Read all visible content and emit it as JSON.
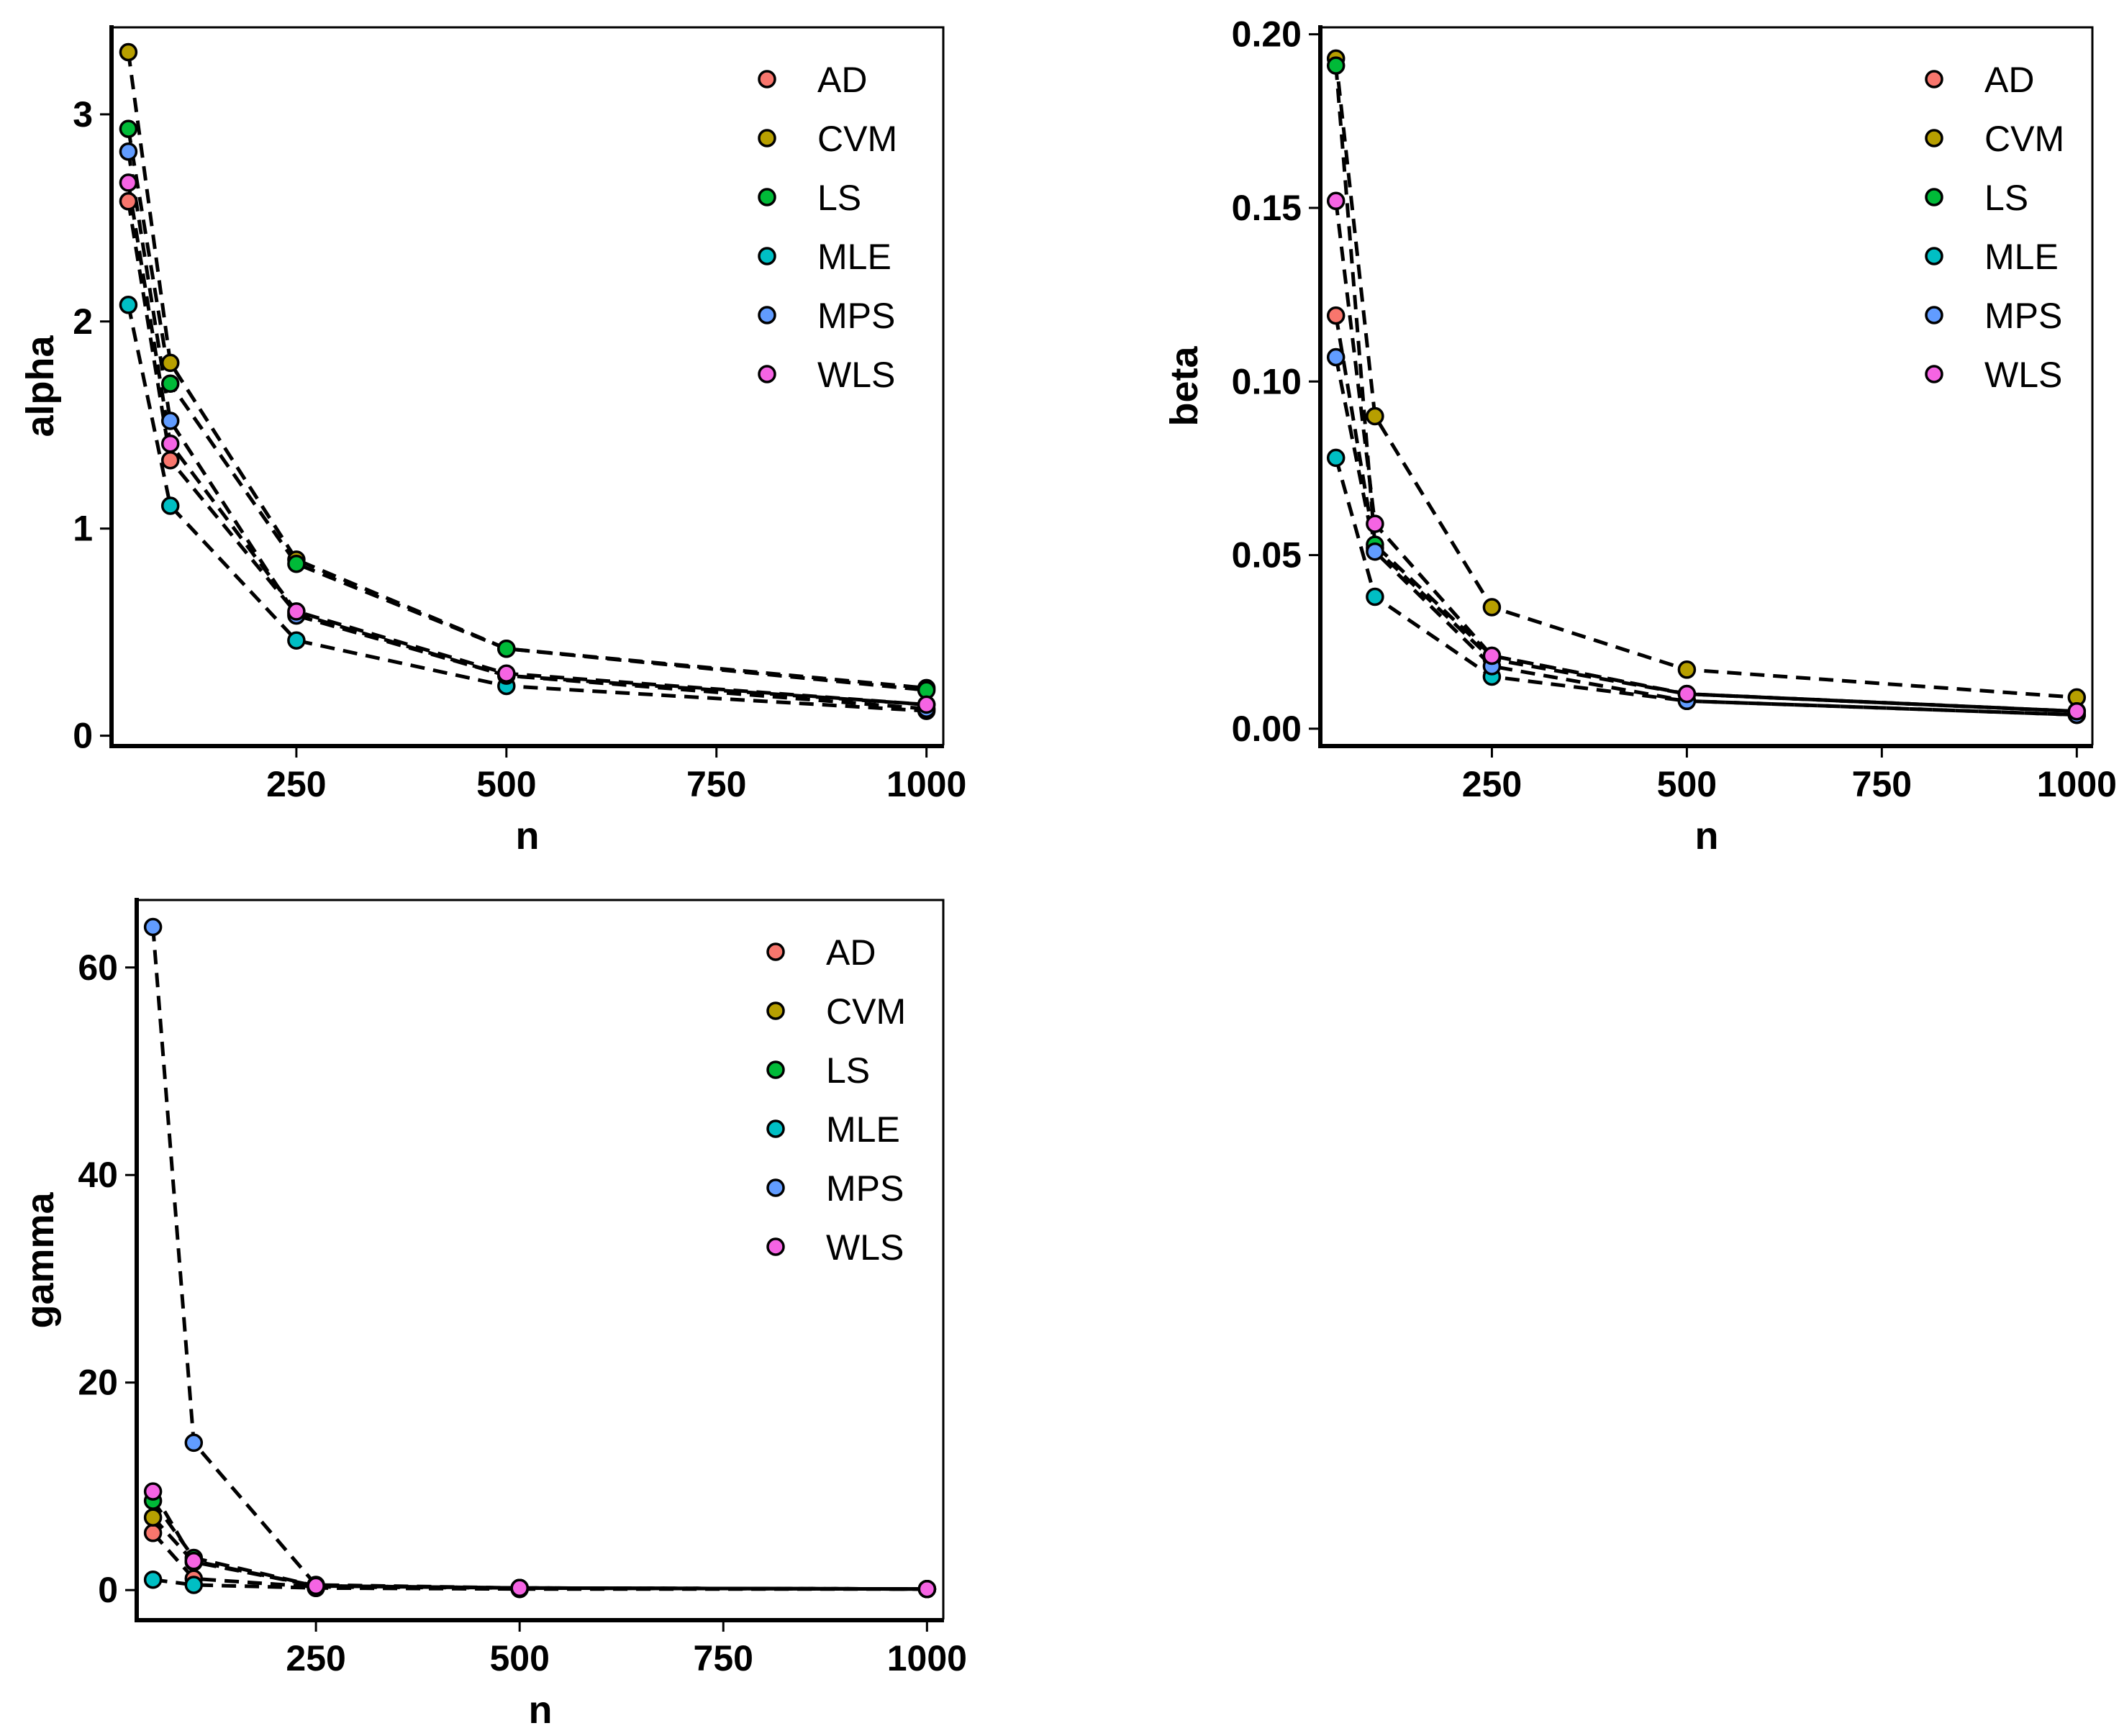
{
  "colors": {
    "AD": "#F8766D",
    "CVM": "#B79F00",
    "LS": "#00BA38",
    "MLE": "#00BFC4",
    "MPS": "#619CFF",
    "WLS": "#F564E3"
  },
  "chart_data": [
    {
      "type": "line",
      "id": "alpha",
      "xlabel": "n",
      "ylabel": "alpha",
      "x": [
        50,
        100,
        250,
        500,
        1000
      ],
      "xticks": [
        "250",
        "500",
        "750",
        "1000"
      ],
      "yticks": [
        "0",
        "1",
        "2",
        "3"
      ],
      "xlim": [
        30,
        1020
      ],
      "ylim": [
        -0.05,
        3.42
      ],
      "legend": [
        "AD",
        "CVM",
        "LS",
        "MLE",
        "MPS",
        "WLS"
      ],
      "series": [
        {
          "name": "AD",
          "values": [
            2.58,
            1.33,
            0.59,
            0.29,
            0.15
          ]
        },
        {
          "name": "CVM",
          "values": [
            3.3,
            1.8,
            0.85,
            0.42,
            0.23
          ]
        },
        {
          "name": "LS",
          "values": [
            2.93,
            1.7,
            0.83,
            0.42,
            0.22
          ]
        },
        {
          "name": "MLE",
          "values": [
            2.08,
            1.11,
            0.46,
            0.24,
            0.12
          ]
        },
        {
          "name": "MPS",
          "values": [
            2.82,
            1.52,
            0.58,
            0.29,
            0.13
          ]
        },
        {
          "name": "WLS",
          "values": [
            2.67,
            1.41,
            0.6,
            0.3,
            0.15
          ]
        }
      ]
    },
    {
      "type": "line",
      "id": "beta",
      "xlabel": "n",
      "ylabel": "beta",
      "x": [
        50,
        100,
        250,
        500,
        1000
      ],
      "xticks": [
        "250",
        "500",
        "750",
        "1000"
      ],
      "yticks": [
        "0.00",
        "0.05",
        "0.10",
        "0.15",
        "0.20"
      ],
      "xlim": [
        30,
        1020
      ],
      "ylim": [
        -0.005,
        0.202
      ],
      "legend": [
        "AD",
        "CVM",
        "LS",
        "MLE",
        "MPS",
        "WLS"
      ],
      "series": [
        {
          "name": "AD",
          "values": [
            0.119,
            0.052,
            0.02,
            0.01,
            0.005
          ]
        },
        {
          "name": "CVM",
          "values": [
            0.193,
            0.09,
            0.035,
            0.017,
            0.009
          ]
        },
        {
          "name": "LS",
          "values": [
            0.191,
            0.053,
            0.021,
            0.01,
            0.005
          ]
        },
        {
          "name": "MLE",
          "values": [
            0.078,
            0.038,
            0.015,
            0.008,
            0.004
          ]
        },
        {
          "name": "MPS",
          "values": [
            0.107,
            0.051,
            0.018,
            0.008,
            0.004
          ]
        },
        {
          "name": "WLS",
          "values": [
            0.152,
            0.059,
            0.021,
            0.01,
            0.005
          ]
        }
      ]
    },
    {
      "type": "line",
      "id": "gamma",
      "xlabel": "n",
      "ylabel": "gamma",
      "x": [
        50,
        100,
        250,
        500,
        1000
      ],
      "xticks": [
        "250",
        "500",
        "750",
        "1000"
      ],
      "yticks": [
        "0",
        "20",
        "40",
        "60"
      ],
      "xlim": [
        30,
        1020
      ],
      "ylim": [
        -2.9,
        66.5
      ],
      "legend": [
        "AD",
        "CVM",
        "LS",
        "MLE",
        "MPS",
        "WLS"
      ],
      "series": [
        {
          "name": "AD",
          "values": [
            5.5,
            1.1,
            0.3,
            0.2,
            0.1
          ]
        },
        {
          "name": "CVM",
          "values": [
            7.0,
            2.7,
            0.4,
            0.2,
            0.1
          ]
        },
        {
          "name": "LS",
          "values": [
            8.6,
            3.1,
            0.4,
            0.2,
            0.1
          ]
        },
        {
          "name": "MLE",
          "values": [
            1.0,
            0.5,
            0.2,
            0.1,
            0.1
          ]
        },
        {
          "name": "MPS",
          "values": [
            63.9,
            14.2,
            0.5,
            0.2,
            0.1
          ]
        },
        {
          "name": "WLS",
          "values": [
            9.5,
            2.8,
            0.4,
            0.2,
            0.1
          ]
        }
      ]
    }
  ]
}
